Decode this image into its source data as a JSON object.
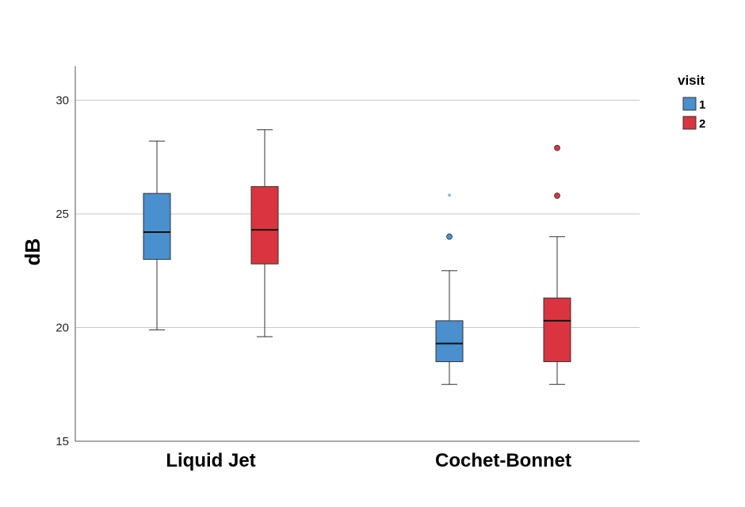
{
  "chart_data": {
    "type": "boxplot",
    "ylabel": "dB",
    "ylim": [
      15,
      31.5
    ],
    "yticks": [
      15,
      20,
      25,
      30
    ],
    "grid": true,
    "categories": [
      "Liquid Jet",
      "Cochet-Bonnet"
    ],
    "legend": {
      "title": "visit",
      "position": "top-right"
    },
    "series": [
      {
        "name": "1",
        "color": "#4a8fce",
        "boxes": [
          {
            "category": "Liquid Jet",
            "min": 19.9,
            "q1": 23.0,
            "median": 24.2,
            "q3": 25.9,
            "max": 28.2,
            "outliers": [],
            "extremes": []
          },
          {
            "category": "Cochet-Bonnet",
            "min": 17.5,
            "q1": 18.5,
            "median": 19.3,
            "q3": 20.3,
            "max": 22.5,
            "outliers": [
              24.0
            ],
            "extremes": [
              25.8
            ]
          }
        ]
      },
      {
        "name": "2",
        "color": "#d9343f",
        "boxes": [
          {
            "category": "Liquid Jet",
            "min": 19.6,
            "q1": 22.8,
            "median": 24.3,
            "q3": 26.2,
            "max": 28.7,
            "outliers": [],
            "extremes": []
          },
          {
            "category": "Cochet-Bonnet",
            "min": 17.5,
            "q1": 18.5,
            "median": 20.3,
            "q3": 21.3,
            "max": 24.0,
            "outliers": [
              25.8,
              27.9
            ],
            "extremes": []
          }
        ]
      }
    ]
  }
}
